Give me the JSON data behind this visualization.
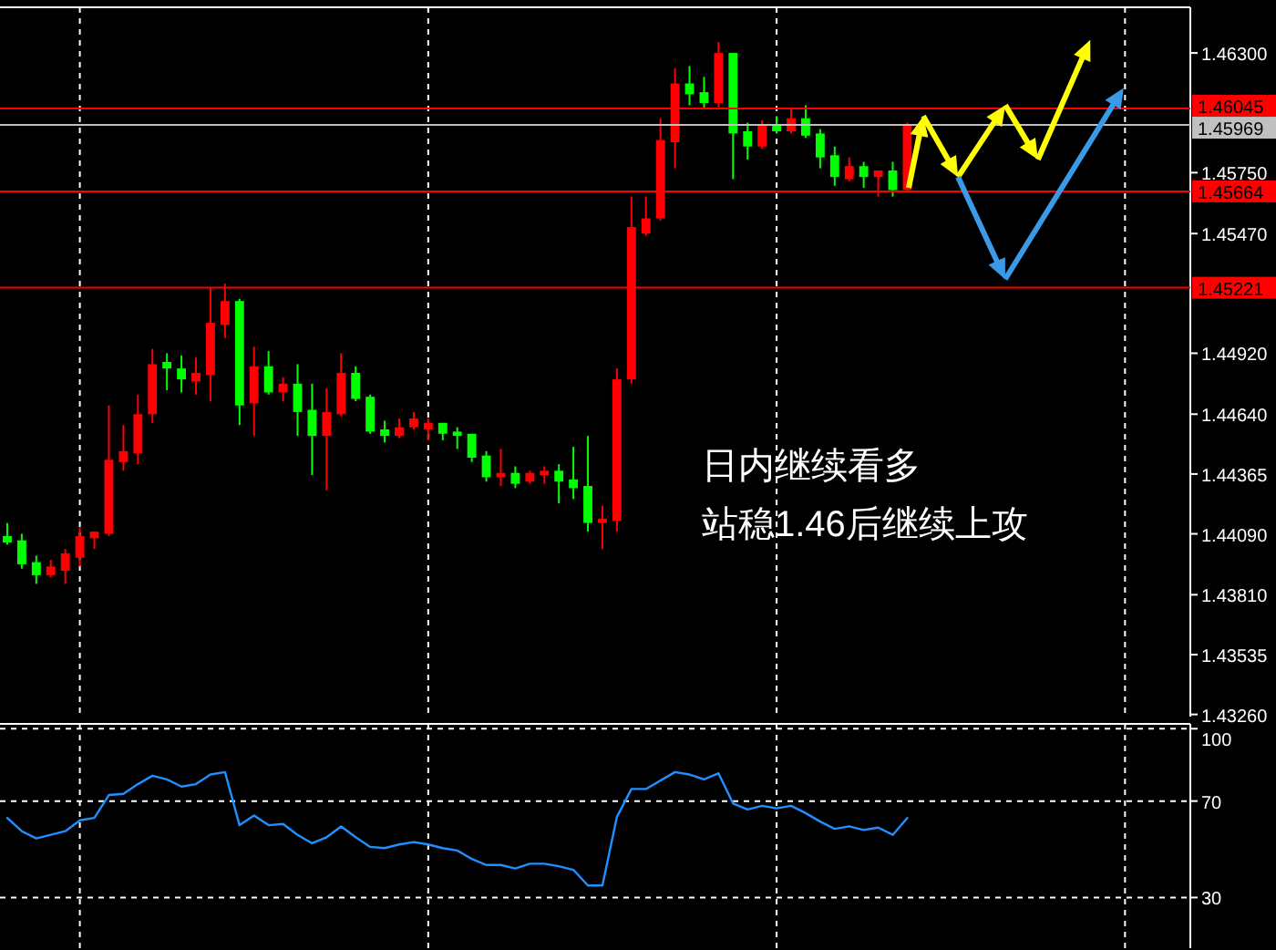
{
  "chart_data": [
    {
      "type": "candlestick",
      "categories": [
        null,
        null,
        null,
        null,
        null,
        null,
        null,
        null,
        null,
        null,
        null,
        null,
        null,
        null,
        null,
        null,
        null,
        null,
        null,
        null,
        null,
        null,
        null,
        null,
        null,
        null,
        null,
        null,
        null,
        null,
        null,
        null,
        null,
        null,
        null,
        null,
        null,
        null,
        null,
        null,
        null,
        null,
        null,
        null,
        null,
        null,
        null,
        null,
        null,
        null,
        null,
        null,
        null,
        null,
        null,
        null,
        null,
        null,
        null,
        null,
        null,
        null,
        null,
        null,
        null,
        null,
        null,
        null,
        null,
        null,
        null,
        null,
        null,
        null,
        null,
        null,
        null,
        null,
        null,
        null,
        null,
        null
      ],
      "ohlc": [
        [
          1.4408,
          1.4414,
          1.4404,
          1.4405
        ],
        [
          1.4406,
          1.4409,
          1.4393,
          1.4395
        ],
        [
          1.4396,
          1.4399,
          1.4386,
          1.439
        ],
        [
          1.439,
          1.4397,
          1.4389,
          1.4394
        ],
        [
          1.4392,
          1.4402,
          1.4386,
          1.44
        ],
        [
          1.4398,
          1.4412,
          1.4394,
          1.4408
        ],
        [
          1.4407,
          1.441,
          1.4402,
          1.441
        ],
        [
          1.4409,
          1.4468,
          1.4408,
          1.4443
        ],
        [
          1.4442,
          1.4459,
          1.4438,
          1.4447
        ],
        [
          1.4446,
          1.4473,
          1.4441,
          1.4464
        ],
        [
          1.4464,
          1.4494,
          1.446,
          1.4487
        ],
        [
          1.4488,
          1.4492,
          1.4475,
          1.4485
        ],
        [
          1.4485,
          1.4491,
          1.4474,
          1.448
        ],
        [
          1.4479,
          1.449,
          1.4473,
          1.4483
        ],
        [
          1.4482,
          1.4522,
          1.447,
          1.4506
        ],
        [
          1.4505,
          1.4524,
          1.4499,
          1.4516
        ],
        [
          1.4516,
          1.4517,
          1.4459,
          1.4468
        ],
        [
          1.4469,
          1.4495,
          1.4454,
          1.4486
        ],
        [
          1.4486,
          1.4493,
          1.4473,
          1.4474
        ],
        [
          1.4474,
          1.4481,
          1.447,
          1.4478
        ],
        [
          1.4478,
          1.4487,
          1.4454,
          1.4465
        ],
        [
          1.4466,
          1.4478,
          1.4436,
          1.4454
        ],
        [
          1.4454,
          1.4476,
          1.4429,
          1.4465
        ],
        [
          1.4464,
          1.4492,
          1.4463,
          1.4483
        ],
        [
          1.4483,
          1.4486,
          1.447,
          1.4471
        ],
        [
          1.4472,
          1.4473,
          1.4455,
          1.4456
        ],
        [
          1.4457,
          1.4461,
          1.4451,
          1.4454
        ],
        [
          1.4454,
          1.4462,
          1.4453,
          1.4458
        ],
        [
          1.4458,
          1.4465,
          1.4457,
          1.4462
        ],
        [
          1.4457,
          1.4462,
          1.4452,
          1.446
        ],
        [
          1.446,
          1.446,
          1.4452,
          1.4455
        ],
        [
          1.4456,
          1.4458,
          1.4448,
          1.4454
        ],
        [
          1.4455,
          1.4455,
          1.4442,
          1.4444
        ],
        [
          1.4445,
          1.4447,
          1.4433,
          1.4435
        ],
        [
          1.4435,
          1.4448,
          1.4431,
          1.4437
        ],
        [
          1.4437,
          1.444,
          1.443,
          1.4432
        ],
        [
          1.4433,
          1.4438,
          1.4432,
          1.4437
        ],
        [
          1.4436,
          1.444,
          1.4432,
          1.4438
        ],
        [
          1.4438,
          1.4441,
          1.4423,
          1.4433
        ],
        [
          1.4434,
          1.4449,
          1.4425,
          1.443
        ],
        [
          1.4431,
          1.4454,
          1.441,
          1.4414
        ],
        [
          1.4414,
          1.4422,
          1.4402,
          1.4416
        ],
        [
          1.4415,
          1.4485,
          1.441,
          1.448
        ],
        [
          1.448,
          1.4564,
          1.4478,
          1.455
        ],
        [
          1.4547,
          1.4564,
          1.4546,
          1.4554
        ],
        [
          1.4554,
          1.46,
          1.4553,
          1.459
        ],
        [
          1.4589,
          1.4623,
          1.4577,
          1.4616
        ],
        [
          1.4616,
          1.4624,
          1.4606,
          1.4611
        ],
        [
          1.4612,
          1.4619,
          1.4604,
          1.4607
        ],
        [
          1.4607,
          1.4635,
          1.4605,
          1.463
        ],
        [
          1.463,
          1.463,
          1.4572,
          1.4593
        ],
        [
          1.4594,
          1.4598,
          1.4581,
          1.4587
        ],
        [
          1.4587,
          1.4599,
          1.4586,
          1.4597
        ],
        [
          1.4597,
          1.4601,
          1.4593,
          1.4594
        ],
        [
          1.4594,
          1.4604,
          1.4593,
          1.46
        ],
        [
          1.46,
          1.4606,
          1.4591,
          1.4592
        ],
        [
          1.4593,
          1.4595,
          1.4577,
          1.4582
        ],
        [
          1.4583,
          1.4587,
          1.4569,
          1.4573
        ],
        [
          1.4572,
          1.4582,
          1.4571,
          1.4578
        ],
        [
          1.4578,
          1.458,
          1.4568,
          1.4573
        ],
        [
          1.4573,
          1.4576,
          1.4564,
          1.4576
        ],
        [
          1.4576,
          1.458,
          1.4564,
          1.4567
        ],
        [
          1.4567,
          1.4598,
          1.4566,
          1.4597
        ],
        null,
        null,
        null,
        null,
        null,
        null,
        null,
        null,
        null,
        null,
        null,
        null,
        null,
        null,
        null,
        null,
        null,
        null,
        null
      ],
      "colors": [
        "#00ff00",
        "#00ff00",
        "#00ff00",
        "#ff0000",
        "#ff0000",
        "#ff0000",
        "#ff0000",
        "#ff0000",
        "#ff0000",
        "#ff0000",
        "#ff0000",
        "#00ff00",
        "#00ff00",
        "#ff0000",
        "#ff0000",
        "#ff0000",
        "#00ff00",
        "#ff0000",
        "#00ff00",
        "#ff0000",
        "#00ff00",
        "#00ff00",
        "#ff0000",
        "#ff0000",
        "#00ff00",
        "#00ff00",
        "#00ff00",
        "#ff0000",
        "#ff0000",
        "#ff0000",
        "#00ff00",
        "#00ff00",
        "#00ff00",
        "#00ff00",
        "#ff0000",
        "#00ff00",
        "#ff0000",
        "#ff0000",
        "#00ff00",
        "#00ff00",
        "#00ff00",
        "#ff0000",
        "#ff0000",
        "#ff0000",
        "#ff0000",
        "#ff0000",
        "#ff0000",
        "#00ff00",
        "#00ff00",
        "#ff0000",
        "#00ff00",
        "#00ff00",
        "#ff0000",
        "#00ff00",
        "#ff0000",
        "#00ff00",
        "#00ff00",
        "#00ff00",
        "#ff0000",
        "#00ff00",
        "#ff0000",
        "#00ff00",
        "#ff0000",
        null,
        null,
        null,
        null,
        null,
        null,
        null,
        null,
        null,
        null,
        null,
        null,
        null,
        null,
        null,
        null,
        null,
        null,
        null
      ],
      "ylim": [
        1.4325,
        1.4651
      ],
      "yticks": [
        {
          "value": 1.463,
          "label": "1.46300"
        },
        {
          "value": 1.4575,
          "label": "1.45750"
        },
        {
          "value": 1.4547,
          "label": "1.45470"
        },
        {
          "value": 1.4492,
          "label": "1.44920"
        },
        {
          "value": 1.4464,
          "label": "1.44640"
        },
        {
          "value": 1.44365,
          "label": "1.44365"
        },
        {
          "value": 1.4409,
          "label": "1.44090"
        },
        {
          "value": 1.4381,
          "label": "1.43810"
        },
        {
          "value": 1.43535,
          "label": "1.43535"
        },
        {
          "value": 1.4326,
          "label": "1.43260"
        }
      ],
      "ref_lines": [
        {
          "axis": "y",
          "value": 1.46045,
          "label": "1.46045",
          "color": "#ff0000"
        },
        {
          "axis": "y",
          "value": 1.45969,
          "label": "1.45969",
          "color": "#c0c0c0"
        },
        {
          "axis": "y",
          "value": 1.45664,
          "label": "1.45664",
          "color": "#ff0000"
        },
        {
          "axis": "y",
          "value": 1.45221,
          "label": "1.45221",
          "color": "#ff0000"
        }
      ],
      "annotations": [
        "日内继续看多",
        "站稳1.46后继续上攻"
      ],
      "grid": "x"
    },
    {
      "type": "line",
      "categories": [
        null,
        null,
        null,
        null,
        null,
        null,
        null,
        null,
        null,
        null,
        null,
        null,
        null,
        null,
        null,
        null,
        null,
        null,
        null,
        null,
        null,
        null,
        null,
        null,
        null,
        null,
        null,
        null,
        null,
        null,
        null,
        null,
        null,
        null,
        null,
        null,
        null,
        null,
        null,
        null,
        null,
        null,
        null,
        null,
        null,
        null,
        null,
        null,
        null,
        null,
        null,
        null,
        null,
        null,
        null,
        null,
        null,
        null,
        null,
        null,
        null,
        null,
        null,
        null,
        null,
        null,
        null,
        null,
        null,
        null,
        null,
        null,
        null,
        null,
        null,
        null,
        null,
        null,
        null,
        null,
        null,
        null
      ],
      "values": [
        63,
        57.5,
        54.5,
        56,
        57.5,
        62,
        63,
        72.5,
        73,
        77,
        80.5,
        79,
        76,
        77,
        81,
        82,
        60,
        64,
        60,
        60.5,
        56,
        52.5,
        55,
        59.5,
        55,
        51,
        50.5,
        52,
        53,
        52,
        50.5,
        49.5,
        46,
        43.5,
        43.5,
        42,
        44,
        44,
        43,
        41.5,
        35,
        35,
        63.5,
        75,
        75,
        78.5,
        82,
        81,
        79,
        81.5,
        69,
        66.5,
        68,
        67,
        68,
        65,
        61.5,
        58.5,
        59.5,
        58,
        59,
        56,
        63,
        null,
        null,
        null,
        null,
        null,
        null,
        null,
        null,
        null,
        null,
        null,
        null,
        null,
        null,
        null,
        null,
        null,
        null,
        null
      ],
      "color": "#1e90ff",
      "ylim": [
        9,
        102
      ],
      "yticks": [
        30,
        70,
        100
      ],
      "grid": true
    }
  ]
}
